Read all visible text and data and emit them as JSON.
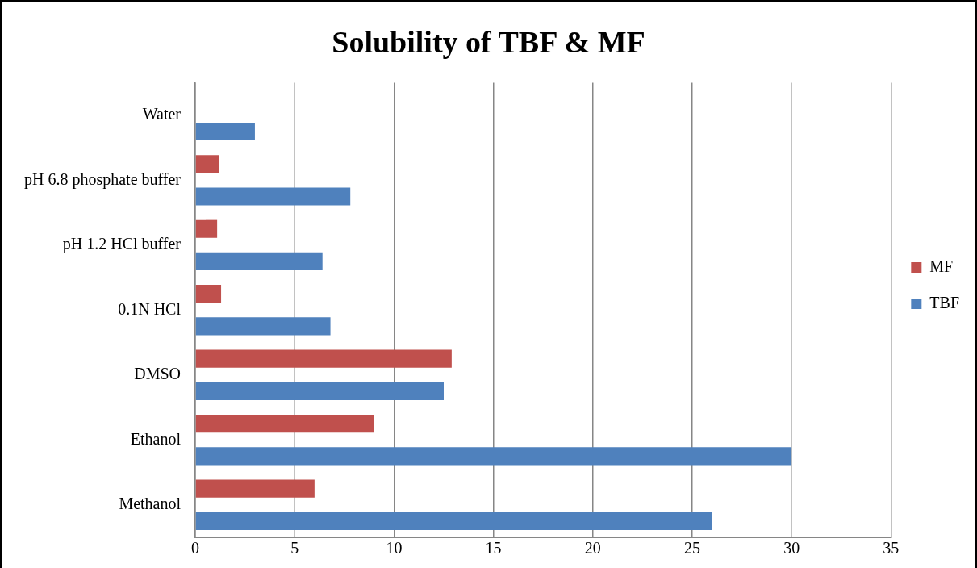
{
  "chart_data": {
    "type": "bar",
    "orientation": "horizontal",
    "title": "Solubility of TBF & MF",
    "categories": [
      "Water",
      "pH 6.8 phosphate buffer",
      "pH 1.2 HCl buffer",
      "0.1N HCl",
      "DMSO",
      "Ethanol",
      "Methanol"
    ],
    "series": [
      {
        "name": "MF",
        "color": "#c0504d",
        "values": [
          null,
          1.2,
          1.1,
          1.3,
          12.9,
          9.0,
          6.0
        ]
      },
      {
        "name": "TBF",
        "color": "#4f81bd",
        "values": [
          3.0,
          7.8,
          6.4,
          6.8,
          12.5,
          30.0,
          26.0
        ]
      }
    ],
    "xlim": [
      0,
      35
    ],
    "xticks": [
      0,
      5,
      10,
      15,
      20,
      25,
      30,
      35
    ],
    "grid": "x",
    "legend": "right"
  }
}
